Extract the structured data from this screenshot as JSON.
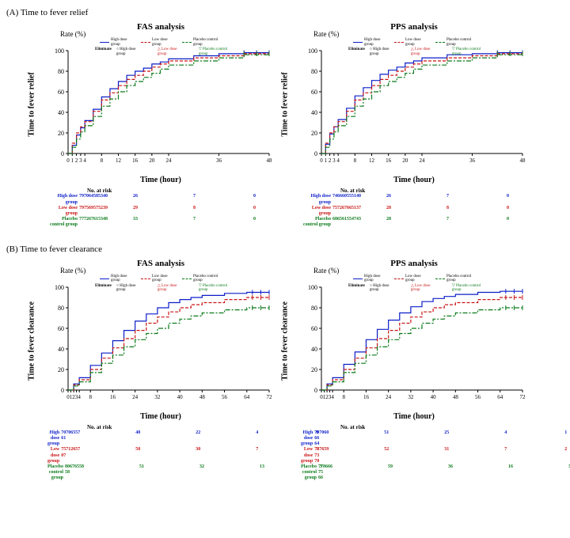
{
  "colors": {
    "high": "#0b1ec9",
    "low": "#c81414",
    "placebo": "#0a7a1a",
    "axis": "#000000",
    "bg": "#ffffff"
  },
  "groups": {
    "high": "High dose group",
    "low": "Low dose group",
    "placebo": "Placebo control group"
  },
  "legend_words": {
    "rate": "Rate (%)",
    "eliminate": "Eliminate"
  },
  "sectionA": {
    "label": "(A) Time to fever relief",
    "ylabel": "Time to fever relief",
    "xlabel": "Time (hour)",
    "xmax": 48,
    "xticks": [
      0,
      1,
      2,
      3,
      4,
      8,
      12,
      16,
      20,
      24,
      36,
      48
    ],
    "yticks": [
      0,
      20,
      40,
      60,
      80,
      100
    ],
    "panels": [
      {
        "title": "FAS analysis",
        "series": {
          "high": [
            [
              0,
              0
            ],
            [
              1,
              8
            ],
            [
              2,
              18
            ],
            [
              3,
              25
            ],
            [
              4,
              32
            ],
            [
              6,
              43
            ],
            [
              8,
              55
            ],
            [
              10,
              63
            ],
            [
              12,
              70
            ],
            [
              14,
              76
            ],
            [
              16,
              80
            ],
            [
              18,
              83
            ],
            [
              20,
              87
            ],
            [
              22,
              89
            ],
            [
              24,
              92
            ],
            [
              30,
              95
            ],
            [
              36,
              97
            ],
            [
              42,
              98
            ],
            [
              48,
              98
            ]
          ],
          "low": [
            [
              0,
              0
            ],
            [
              1,
              10
            ],
            [
              2,
              20
            ],
            [
              3,
              26
            ],
            [
              4,
              31
            ],
            [
              6,
              41
            ],
            [
              8,
              52
            ],
            [
              10,
              59
            ],
            [
              12,
              66
            ],
            [
              14,
              72
            ],
            [
              16,
              76
            ],
            [
              18,
              80
            ],
            [
              20,
              84
            ],
            [
              22,
              87
            ],
            [
              24,
              90
            ],
            [
              30,
              93
            ],
            [
              36,
              95
            ],
            [
              42,
              97
            ],
            [
              48,
              97
            ]
          ],
          "placebo": [
            [
              0,
              0
            ],
            [
              1,
              6
            ],
            [
              2,
              14
            ],
            [
              3,
              21
            ],
            [
              4,
              27
            ],
            [
              6,
              36
            ],
            [
              8,
              46
            ],
            [
              10,
              53
            ],
            [
              12,
              60
            ],
            [
              14,
              66
            ],
            [
              16,
              70
            ],
            [
              18,
              74
            ],
            [
              20,
              78
            ],
            [
              22,
              82
            ],
            [
              24,
              86
            ],
            [
              30,
              90
            ],
            [
              36,
              93
            ],
            [
              42,
              96
            ],
            [
              48,
              97
            ]
          ]
        },
        "risk_header": "No. at risk",
        "risk": {
          "blockcol": [
            "0",
            "1",
            "2",
            "3",
            "4"
          ],
          "high": {
            "init": "7970645853",
            "cells": [
              "40",
              "26",
              "",
              "7",
              "",
              "0"
            ]
          },
          "low": {
            "init": "7975695752",
            "cells": [
              "39",
              "29",
              "",
              "8",
              "",
              "0"
            ]
          },
          "placebo": {
            "init": "7772676153",
            "cells": [
              "48",
              "33",
              "",
              "7",
              "",
              "0"
            ]
          }
        }
      },
      {
        "title": "PPS analysis",
        "series": {
          "high": [
            [
              0,
              0
            ],
            [
              1,
              9
            ],
            [
              2,
              19
            ],
            [
              3,
              26
            ],
            [
              4,
              33
            ],
            [
              6,
              44
            ],
            [
              8,
              56
            ],
            [
              10,
              64
            ],
            [
              12,
              71
            ],
            [
              14,
              77
            ],
            [
              16,
              81
            ],
            [
              18,
              84
            ],
            [
              20,
              88
            ],
            [
              22,
              90
            ],
            [
              24,
              93
            ],
            [
              30,
              96
            ],
            [
              36,
              97
            ],
            [
              42,
              98
            ],
            [
              48,
              98
            ]
          ],
          "low": [
            [
              0,
              0
            ],
            [
              1,
              10
            ],
            [
              2,
              20
            ],
            [
              3,
              26
            ],
            [
              4,
              31
            ],
            [
              6,
              41
            ],
            [
              8,
              52
            ],
            [
              10,
              59
            ],
            [
              12,
              66
            ],
            [
              14,
              72
            ],
            [
              16,
              76
            ],
            [
              18,
              80
            ],
            [
              20,
              84
            ],
            [
              22,
              87
            ],
            [
              24,
              90
            ],
            [
              30,
              93
            ],
            [
              36,
              95
            ],
            [
              42,
              97
            ],
            [
              48,
              97
            ]
          ],
          "placebo": [
            [
              0,
              0
            ],
            [
              1,
              6
            ],
            [
              2,
              14
            ],
            [
              3,
              21
            ],
            [
              4,
              27
            ],
            [
              6,
              36
            ],
            [
              8,
              46
            ],
            [
              10,
              53
            ],
            [
              12,
              60
            ],
            [
              14,
              66
            ],
            [
              16,
              70
            ],
            [
              18,
              74
            ],
            [
              20,
              78
            ],
            [
              22,
              82
            ],
            [
              24,
              86
            ],
            [
              30,
              90
            ],
            [
              36,
              93
            ],
            [
              42,
              96
            ],
            [
              48,
              97
            ]
          ]
        },
        "risk_header": "No. at risk",
        "risk": {
          "high": {
            "init": "7466605551",
            "cells": [
              "40",
              "26",
              "",
              "7",
              "",
              "0"
            ]
          },
          "low": {
            "init": "7572676651",
            "cells": [
              "37",
              "28",
              "",
              "8",
              "",
              "0"
            ]
          },
          "placebo": {
            "init": "6865615547",
            "cells": [
              "43",
              "28",
              "",
              "7",
              "",
              "0"
            ]
          }
        }
      }
    ]
  },
  "sectionB": {
    "label": "(B) Time to fever clearance",
    "ylabel": "Time to  fever clearance",
    "xlabel": "Time (hour)",
    "xmax": 72,
    "xticks": [
      0,
      1,
      2,
      3,
      4,
      8,
      16,
      24,
      32,
      40,
      48,
      56,
      64,
      72
    ],
    "yticks": [
      0,
      20,
      40,
      60,
      80,
      100
    ],
    "panels": [
      {
        "title": "FAS analysis",
        "series": {
          "high": [
            [
              0,
              0
            ],
            [
              2,
              6
            ],
            [
              4,
              12
            ],
            [
              8,
              24
            ],
            [
              12,
              36
            ],
            [
              16,
              48
            ],
            [
              20,
              58
            ],
            [
              24,
              67
            ],
            [
              28,
              74
            ],
            [
              32,
              80
            ],
            [
              36,
              85
            ],
            [
              40,
              88
            ],
            [
              44,
              90
            ],
            [
              48,
              92
            ],
            [
              56,
              94
            ],
            [
              64,
              95
            ],
            [
              72,
              95
            ]
          ],
          "low": [
            [
              0,
              0
            ],
            [
              2,
              5
            ],
            [
              4,
              10
            ],
            [
              8,
              20
            ],
            [
              12,
              31
            ],
            [
              16,
              41
            ],
            [
              20,
              50
            ],
            [
              24,
              58
            ],
            [
              28,
              65
            ],
            [
              32,
              71
            ],
            [
              36,
              76
            ],
            [
              40,
              80
            ],
            [
              44,
              83
            ],
            [
              48,
              85
            ],
            [
              56,
              88
            ],
            [
              64,
              90
            ],
            [
              72,
              90
            ]
          ],
          "placebo": [
            [
              0,
              0
            ],
            [
              2,
              4
            ],
            [
              4,
              8
            ],
            [
              8,
              17
            ],
            [
              12,
              26
            ],
            [
              16,
              34
            ],
            [
              20,
              42
            ],
            [
              24,
              49
            ],
            [
              28,
              55
            ],
            [
              32,
              60
            ],
            [
              36,
              65
            ],
            [
              40,
              69
            ],
            [
              44,
              72
            ],
            [
              48,
              75
            ],
            [
              56,
              78
            ],
            [
              64,
              80
            ],
            [
              72,
              80
            ]
          ]
        },
        "risk_header": "No. at risk",
        "risk": {
          "high": {
            "init": "707065 61",
            "cells": [
              "57",
              "",
              "48",
              "",
              "22",
              "",
              "4",
              "",
              "0"
            ]
          },
          "low": {
            "init": "757126 07",
            "cells": [
              "57",
              "",
              "50",
              "",
              "30",
              "",
              "7",
              "",
              "1"
            ]
          },
          "placebo": {
            "init": "806765 58",
            "cells": [
              "58",
              "",
              "51",
              "",
              "32",
              "",
              "13",
              "",
              "3"
            ]
          }
        }
      },
      {
        "title": "PPS analysis",
        "series": {
          "high": [
            [
              0,
              0
            ],
            [
              2,
              6
            ],
            [
              4,
              12
            ],
            [
              8,
              25
            ],
            [
              12,
              37
            ],
            [
              16,
              49
            ],
            [
              20,
              59
            ],
            [
              24,
              68
            ],
            [
              28,
              75
            ],
            [
              32,
              81
            ],
            [
              36,
              86
            ],
            [
              40,
              89
            ],
            [
              44,
              91
            ],
            [
              48,
              93
            ],
            [
              56,
              95
            ],
            [
              64,
              96
            ],
            [
              72,
              96
            ]
          ],
          "low": [
            [
              0,
              0
            ],
            [
              2,
              5
            ],
            [
              4,
              10
            ],
            [
              8,
              20
            ],
            [
              12,
              31
            ],
            [
              16,
              41
            ],
            [
              20,
              50
            ],
            [
              24,
              58
            ],
            [
              28,
              65
            ],
            [
              32,
              71
            ],
            [
              36,
              76
            ],
            [
              40,
              80
            ],
            [
              44,
              83
            ],
            [
              48,
              85
            ],
            [
              56,
              88
            ],
            [
              64,
              90
            ],
            [
              72,
              90
            ]
          ],
          "placebo": [
            [
              0,
              0
            ],
            [
              2,
              4
            ],
            [
              4,
              8
            ],
            [
              8,
              17
            ],
            [
              12,
              26
            ],
            [
              16,
              34
            ],
            [
              20,
              42
            ],
            [
              24,
              49
            ],
            [
              28,
              55
            ],
            [
              32,
              60
            ],
            [
              36,
              65
            ],
            [
              40,
              69
            ],
            [
              44,
              72
            ],
            [
              48,
              75
            ],
            [
              56,
              78
            ],
            [
              64,
              80
            ],
            [
              72,
              80
            ]
          ]
        },
        "risk_header": "No. at risk",
        "risk": {
          "high": {
            "init": "7970 66 64",
            "cells": [
              "60",
              "",
              "51",
              "",
              "25",
              "",
              "4",
              "",
              "1"
            ]
          },
          "low": {
            "init": "7876 73 70",
            "cells": [
              "59",
              "",
              "52",
              "",
              "31",
              "",
              "7",
              "",
              "2"
            ]
          },
          "placebo": {
            "init": "7786 75 66",
            "cells": [
              "66",
              "",
              "59",
              "",
              "36",
              "",
              "16",
              "",
              "3"
            ]
          }
        }
      }
    ]
  }
}
